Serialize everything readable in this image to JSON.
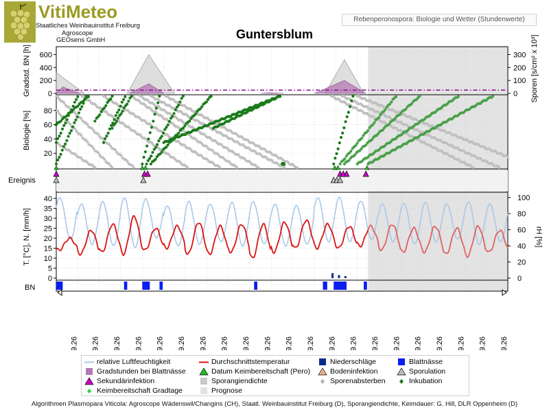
{
  "header": {
    "logo_title": "VitiMeteo",
    "logo_line1": "Staatliches Weinbauinstitut Freiburg",
    "logo_line2": "Agroscope",
    "logo_line3": "GEOsens GmbH",
    "subtitle": "Rebenperonospora: Biologie und Wetter (Stundenwerte)",
    "station": "Guntersblum"
  },
  "colors": {
    "humidity": "#a9c8e8",
    "temperature": "#dd1111",
    "temperature_forecast": "#e06060",
    "precip": "#0a2a8a",
    "leafwet": "#0a1ef0",
    "degree_hours": "#b478b4",
    "spore_density": "#c8c8c8",
    "forecast_bg": "#e3e3e3",
    "incubation": "#1a7a1a",
    "incubation_forecast": "#4aa04a",
    "spore_death": "#c0c0c0",
    "threshold": "#8a0a8a",
    "secondary_infection": "#cc00cc"
  },
  "chart_data": {
    "type": "line",
    "days": [
      "02.09.26",
      "03.09.26",
      "04.09.26",
      "05.09.26",
      "06.09.26",
      "07.09.26",
      "08.09.26",
      "09.09.26",
      "10.09.26",
      "11.09.26",
      "12.09.26",
      "13.09.26",
      "14.09.26",
      "15.09.26",
      "16.09.26",
      "17.09.26",
      "18.09.26",
      "19.09.26",
      "20.09.26",
      "21.09.26",
      "22.09.26"
    ],
    "forecast_from": "15.09.26 18:00",
    "panels": {
      "gradstunden": {
        "ylabel": "Gradstd. BN [h]",
        "yticks": [
          0,
          200,
          400,
          600
        ],
        "y2label": "Sporen [s/cm² x 10³]",
        "y2ticks": [
          0,
          100,
          200,
          300
        ],
        "threshold": 50,
        "degree_hours_peaks": [
          {
            "start": 0.0,
            "peak": 0.3,
            "end": 1.1,
            "value": 100
          },
          {
            "start": 3.4,
            "peak": 4.3,
            "end": 5.0,
            "value": 150
          },
          {
            "start": 9.5,
            "peak": 10.0,
            "end": 10.6,
            "value": 10
          },
          {
            "start": 12.0,
            "peak": 13.4,
            "end": 14.4,
            "value": 200
          }
        ],
        "spore_density_peaks": [
          {
            "start": 0.0,
            "peak": 0.0,
            "end": 1.3,
            "value": 160
          },
          {
            "start": 3.3,
            "peak": 4.3,
            "end": 5.5,
            "value": 300
          },
          {
            "start": 12.5,
            "peak": 13.4,
            "end": 14.3,
            "value": 260
          }
        ]
      },
      "biologie": {
        "ylabel": "Biologie [%]",
        "yticks": [
          20,
          40,
          60,
          80
        ]
      },
      "ereignis": {
        "label": "Ereignis",
        "secondary_infection_days": [
          0.0,
          4.1,
          4.25,
          13.2,
          13.35,
          13.5,
          14.4
        ],
        "sporulation_days": [
          0.0,
          4.05,
          12.9,
          13.05,
          13.2
        ]
      },
      "wetter": {
        "ylabel": "T. [°C], N. [mm/h]",
        "yticks": [
          0,
          5,
          10,
          15,
          20,
          25,
          30,
          35,
          40
        ],
        "y2label": "rH [%]",
        "y2ticks": [
          0,
          20,
          40,
          60,
          80,
          100
        ],
        "temp_min": [
          14,
          12,
          13,
          12,
          14,
          15,
          12,
          12,
          13,
          10,
          13,
          15,
          15,
          15,
          16,
          14,
          13,
          13,
          12,
          11,
          13
        ],
        "temp_max": [
          20,
          24,
          27,
          31,
          25,
          26,
          28,
          26,
          27,
          27,
          28,
          29,
          27,
          26,
          26,
          27,
          25,
          26,
          25,
          26,
          24
        ],
        "rh_min": [
          48,
          42,
          40,
          38,
          50,
          40,
          42,
          45,
          40,
          42,
          40,
          42,
          45,
          45,
          48,
          45,
          42,
          45,
          48,
          42,
          45
        ],
        "rh_max": [
          100,
          92,
          95,
          100,
          98,
          90,
          95,
          92,
          94,
          95,
          92,
          90,
          100,
          100,
          96,
          92,
          93,
          94,
          92,
          95,
          92
        ],
        "precip": [
          {
            "day": 12.8,
            "value": 2.5
          },
          {
            "day": 13.1,
            "value": 1.5
          },
          {
            "day": 13.4,
            "value": 1.0
          }
        ]
      },
      "bn": {
        "label": "BN",
        "leafwet_intervals": [
          [
            0.0,
            0.3
          ],
          [
            3.15,
            3.3
          ],
          [
            4.0,
            4.35
          ],
          [
            4.8,
            4.95
          ],
          [
            9.2,
            9.35
          ],
          [
            12.4,
            12.6
          ],
          [
            12.9,
            13.5
          ],
          [
            14.3,
            14.45
          ]
        ]
      }
    }
  },
  "legend": [
    {
      "label": "relative Luftfeuchtigkeit",
      "symbol": "line-humidity"
    },
    {
      "label": "Durchschnittstemperatur",
      "symbol": "line-temperature"
    },
    {
      "label": "Niederschläge",
      "symbol": "square-precip"
    },
    {
      "label": "Blattnässe",
      "symbol": "square-leafwet"
    },
    {
      "label": "Gradstunden bei Blattnässe",
      "symbol": "square-degree-hours"
    },
    {
      "label": "Datum Keimbereitschaft (Pero)",
      "symbol": "triangle-green"
    },
    {
      "label": "Bodeninfektion",
      "symbol": "triangle-orange"
    },
    {
      "label": "Sporulation",
      "symbol": "triangle-gray"
    },
    {
      "label": "Sekundärinfektion",
      "symbol": "triangle-magenta"
    },
    {
      "label": "Sporangiendichte",
      "symbol": "square-spore-density"
    },
    {
      "label": "Sporenabsterben",
      "symbol": "diamond-gray"
    },
    {
      "label": "Inkubation",
      "symbol": "diamond-green"
    },
    {
      "label": "Keimbereitschaft Gradtage",
      "symbol": "diamond-lightgreen"
    },
    {
      "label": "Prognose",
      "symbol": "square-forecast"
    }
  ],
  "footer": "Algorithmen Plasmopara Viticola: Agroscope Wädenswil/Changins (CH), Staatl. Weinbauinstitut Freiburg (D), Sporangiendichte, Keimdauer: G. Hill, DLR Oppenheim (D)"
}
